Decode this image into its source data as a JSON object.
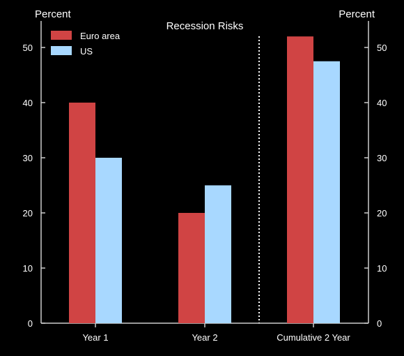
{
  "chart_data": {
    "type": "bar",
    "title": "Recession Risks",
    "ylabel_left": "Percent",
    "ylabel_right": "Percent",
    "categories": [
      "Year 1",
      "Year 2",
      "Cumulative 2 Year"
    ],
    "series": [
      {
        "name": "Euro area",
        "color": "#d04444",
        "values": [
          40,
          20,
          52
        ]
      },
      {
        "name": "US",
        "color": "#a8d8ff",
        "values": [
          30,
          25,
          47.5
        ]
      }
    ],
    "ylim": [
      0,
      55
    ],
    "yticks": [
      0,
      10,
      20,
      30,
      40,
      50
    ],
    "divider_after_category": 1,
    "legend_position": "top-left",
    "grid": false
  }
}
